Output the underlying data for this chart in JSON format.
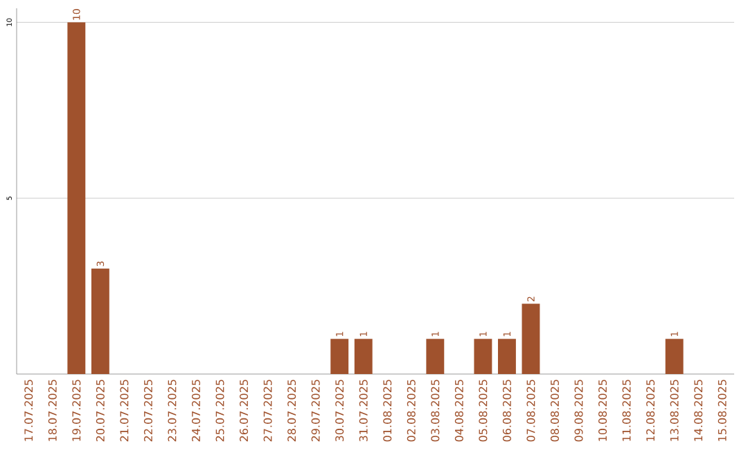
{
  "chart_data": {
    "type": "bar",
    "categories": [
      "17.07.2025",
      "18.07.2025",
      "19.07.2025",
      "20.07.2025",
      "21.07.2025",
      "22.07.2025",
      "23.07.2025",
      "24.07.2025",
      "25.07.2025",
      "26.07.2025",
      "27.07.2025",
      "28.07.2025",
      "29.07.2025",
      "30.07.2025",
      "31.07.2025",
      "01.08.2025",
      "02.08.2025",
      "03.08.2025",
      "04.08.2025",
      "05.08.2025",
      "06.08.2025",
      "07.08.2025",
      "08.08.2025",
      "09.08.2025",
      "10.08.2025",
      "11.08.2025",
      "12.08.2025",
      "13.08.2025",
      "14.08.2025",
      "15.08.2025"
    ],
    "values": [
      0,
      0,
      10,
      3,
      0,
      0,
      0,
      0,
      0,
      0,
      0,
      0,
      0,
      1,
      1,
      0,
      0,
      1,
      0,
      1,
      1,
      2,
      0,
      0,
      0,
      0,
      0,
      1,
      0,
      0
    ],
    "value_labels": [
      null,
      null,
      "10",
      "3",
      null,
      null,
      null,
      null,
      null,
      null,
      null,
      null,
      null,
      "1",
      "1",
      null,
      null,
      "1",
      null,
      "1",
      "1",
      "2",
      null,
      null,
      null,
      null,
      null,
      "1",
      null,
      null
    ],
    "color": "#a0522d",
    "ylim": [
      0,
      10.4
    ],
    "yticks": [
      5,
      10
    ],
    "grid": "y"
  }
}
